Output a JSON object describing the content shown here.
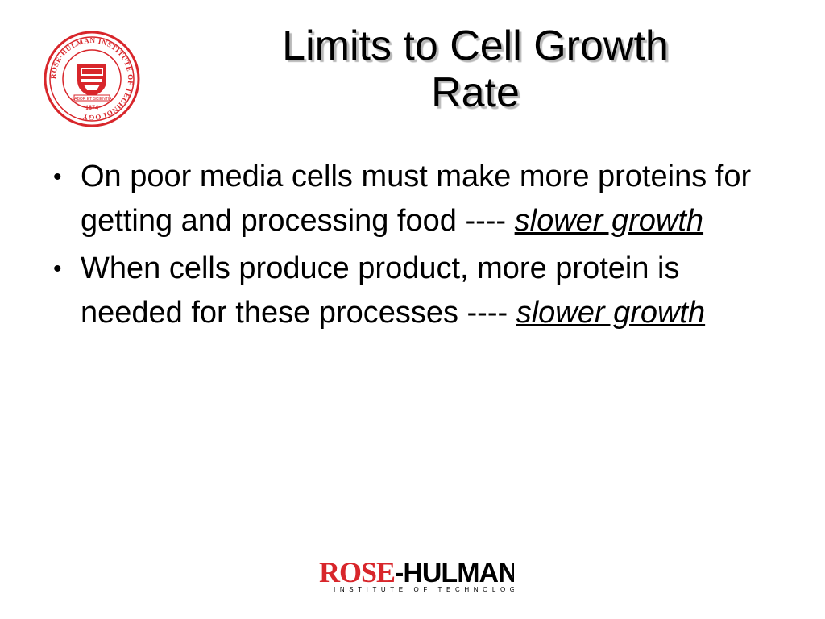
{
  "slide": {
    "title_line1": "Limits to Cell Growth",
    "title_line2": "Rate",
    "bullets": [
      {
        "text": "On poor media cells must make more proteins for getting and processing food  ---- ",
        "emphasis": "slower growth"
      },
      {
        "text": "When cells produce product, more protein is needed for these processes ---- ",
        "emphasis": "slower growth"
      }
    ]
  },
  "logos": {
    "seal_text": "ROSE-HULMAN INSTITUTE OF TECHNOLOGY",
    "seal_motto": "LABOR ET SCIENTIA",
    "seal_year": "1874",
    "footer_name_rose": "ROSE",
    "footer_name_hulman": "-HULMAN",
    "footer_tagline": "INSTITUTE OF TECHNOLOGY"
  },
  "colors": {
    "brand_red": "#d8262b",
    "text": "#000000",
    "title_shadow": "#b8b8b8"
  }
}
